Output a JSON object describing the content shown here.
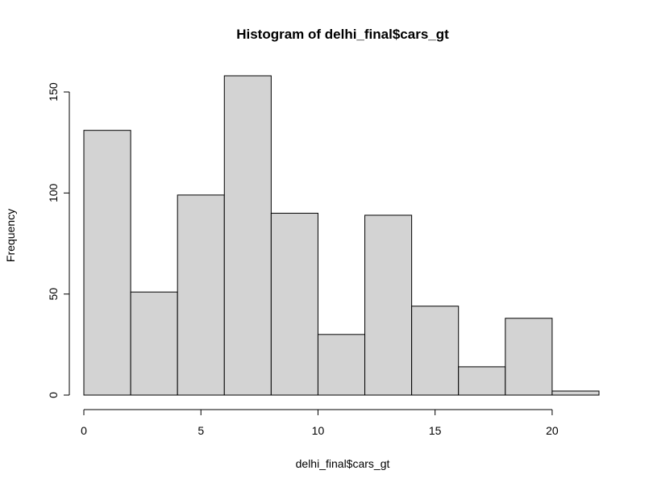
{
  "chart_data": {
    "type": "bar",
    "title": "Histogram of delhi_final$cars_gt",
    "xlabel": "delhi_final$cars_gt",
    "ylabel": "Frequency",
    "bins": [
      {
        "from": 0,
        "to": 2,
        "count": 131
      },
      {
        "from": 2,
        "to": 4,
        "count": 51
      },
      {
        "from": 4,
        "to": 6,
        "count": 99
      },
      {
        "from": 6,
        "to": 8,
        "count": 158
      },
      {
        "from": 8,
        "to": 10,
        "count": 90
      },
      {
        "from": 10,
        "to": 12,
        "count": 30
      },
      {
        "from": 12,
        "to": 14,
        "count": 89
      },
      {
        "from": 14,
        "to": 16,
        "count": 44
      },
      {
        "from": 16,
        "to": 18,
        "count": 14
      },
      {
        "from": 18,
        "to": 20,
        "count": 38
      },
      {
        "from": 20,
        "to": 22,
        "count": 2
      }
    ],
    "xlim": [
      0,
      22
    ],
    "ylim": [
      0,
      158
    ],
    "xticks": [
      0,
      5,
      10,
      15,
      20
    ],
    "yticks": [
      0,
      50,
      100,
      150
    ],
    "bar_fill": "#d3d3d3",
    "bar_stroke": "#000000",
    "grid": false,
    "legend": "none"
  }
}
